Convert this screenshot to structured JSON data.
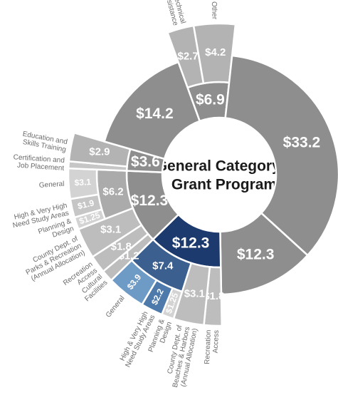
{
  "chart_data": {
    "type": "sunburst",
    "title": [
      "General Category 3",
      "Grant Program"
    ],
    "start_angle": -20,
    "nodes": [
      {
        "value": 6.9,
        "value_label": "$6.9",
        "color": "#8e8e8e",
        "children": [
          {
            "label": [
              "Technical",
              "Assistance"
            ],
            "value": 2.7,
            "value_label": "$2.7",
            "color": "#b3b3b3"
          },
          {
            "label": [
              "Other"
            ],
            "value": 4.2,
            "value_label": "$4.2",
            "color": "#b3b3b3"
          }
        ]
      },
      {
        "value": 33.2,
        "value_label": "$33.2",
        "color": "#8e8e8e"
      },
      {
        "value": 12.3,
        "value_label": "$12.3",
        "color": "#8e8e8e"
      },
      {
        "value": 12.3,
        "value_label": "$12.3",
        "color": "#1d3a6e",
        "children": [
          {
            "label": [
              "Recreation",
              "Access"
            ],
            "value": 1.8,
            "value_label": "$1.8",
            "color": "#bdbdbd"
          },
          {
            "label": [
              "County Dept. of",
              "Beaches & Harbors",
              "(Annual Allocation)"
            ],
            "value": 3.1,
            "value_label": "$3.1",
            "color": "#bdbdbd"
          },
          {
            "value": 7.4,
            "value_label": "$7.4",
            "color": "#3b5f8f",
            "children": [
              {
                "label": [
                  "Planning &",
                  "Design"
                ],
                "value": 1.25,
                "value_label": "$1.25",
                "color": "#d3d3d3"
              },
              {
                "label": [
                  "High & Very High",
                  "Need Study Areas"
                ],
                "value": 2.2,
                "value_label": "$2.2",
                "color": "#4d7aaa"
              },
              {
                "label": [
                  "General"
                ],
                "value": 3.9,
                "value_label": "$3.9",
                "color": "#6e9bc6"
              }
            ]
          }
        ]
      },
      {
        "value": 12.3,
        "value_label": "$12.3",
        "color": "#8e8e8e",
        "children": [
          {
            "label": [
              "Cultural",
              "Facilities"
            ],
            "value": 1.2,
            "value_label": "$1.2",
            "color": "#bdbdbd"
          },
          {
            "label": [
              "Recreation",
              "Access"
            ],
            "value": 1.8,
            "value_label": "$1.8",
            "color": "#bdbdbd"
          },
          {
            "label": [
              "County Dept. of",
              "Parks & Recreation",
              "(Annual Allocation)"
            ],
            "value": 3.1,
            "value_label": "$3.1",
            "color": "#bdbdbd"
          },
          {
            "value": 6.2,
            "value_label": "$6.2",
            "color": "#ababab",
            "children": [
              {
                "label": [
                  "Planning &",
                  "Design"
                ],
                "value": 1.25,
                "value_label": "$1.25",
                "color": "#d3d3d3"
              },
              {
                "label": [
                  "High & Very High",
                  "Need Study Areas"
                ],
                "value": 1.9,
                "value_label": "$1.9",
                "color": "#c6c6c6"
              },
              {
                "label": [
                  "General"
                ],
                "value": 3.1,
                "value_label": "$3.1",
                "color": "#d3d3d3"
              }
            ]
          }
        ]
      },
      {
        "value": 3.6,
        "value_label": "$3.6",
        "color": "#8e8e8e",
        "children": [
          {
            "label": [
              "Certification and",
              "Job Placement"
            ],
            "value": 0.7,
            "color": "#c6c6c6"
          },
          {
            "label": [
              "Education and",
              "Skills Training"
            ],
            "value": 2.9,
            "value_label": "$2.9",
            "color": "#b3b3b3"
          }
        ]
      },
      {
        "value": 14.2,
        "value_label": "$14.2",
        "color": "#8e8e8e"
      }
    ]
  }
}
